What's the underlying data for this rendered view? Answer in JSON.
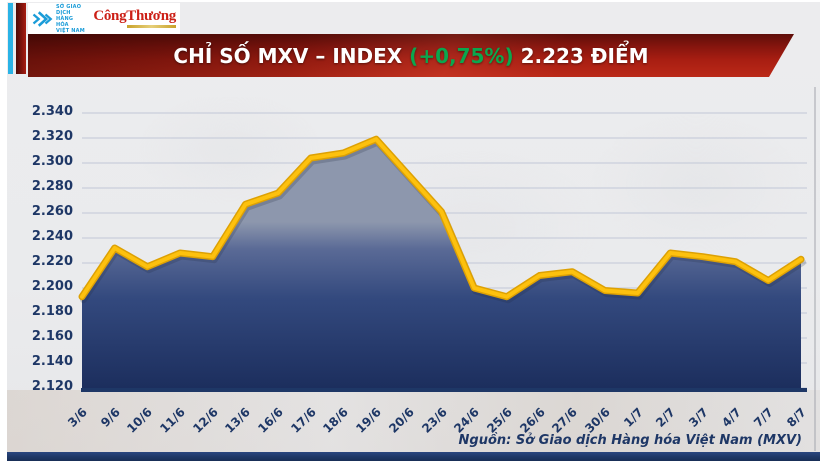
{
  "header": {
    "mxv_logo": {
      "org_lines": [
        "SỞ GIAO DỊCH",
        "HÀNG HÓA",
        "VIỆT NAM"
      ]
    },
    "congthuong_logo": "CôngThương",
    "banner": {
      "title_main": "CHỈ SỐ MXV – INDEX",
      "title_change": "(+0,75%)",
      "title_value": "2.223 ĐIỂM"
    }
  },
  "chart_data": {
    "type": "area",
    "title": "CHỈ SỐ MXV – INDEX (+0,75%) 2.223 ĐIỂM",
    "x": [
      "3/6",
      "9/6",
      "10/6",
      "11/6",
      "12/6",
      "13/6",
      "16/6",
      "17/6",
      "18/6",
      "19/6",
      "20/6",
      "23/6",
      "24/6",
      "25/6",
      "26/6",
      "27/6",
      "30/6",
      "1/7",
      "2/7",
      "3/7",
      "4/7",
      "7/7",
      "8/7"
    ],
    "values": [
      2.193,
      2.232,
      2.217,
      2.228,
      2.225,
      2.267,
      2.276,
      2.304,
      2.308,
      2.319,
      2.29,
      2.261,
      2.2,
      2.193,
      2.21,
      2.213,
      2.198,
      2.196,
      2.228,
      2.225,
      2.221,
      2.206,
      2.223
    ],
    "y_ticks": [
      "2.340",
      "2.320",
      "2.300",
      "2.280",
      "2.260",
      "2.240",
      "2.220",
      "2.200",
      "2.180",
      "2.160",
      "2.140",
      "2.120"
    ],
    "ylim": [
      2.12,
      2.34
    ],
    "grid": true,
    "legend": "none",
    "line_color": "#fdc10e",
    "line_edge_color": "#dda104",
    "fill_gradient_top": "#8d97ad",
    "fill_gradient_bottom": "#1b2d5c",
    "axis_color": "#1e3766",
    "gridline_color": "#c9cedb"
  },
  "footer": {
    "source": "Nguồn: Sở Giao dịch Hàng hóa Việt Nam (MXV)"
  }
}
